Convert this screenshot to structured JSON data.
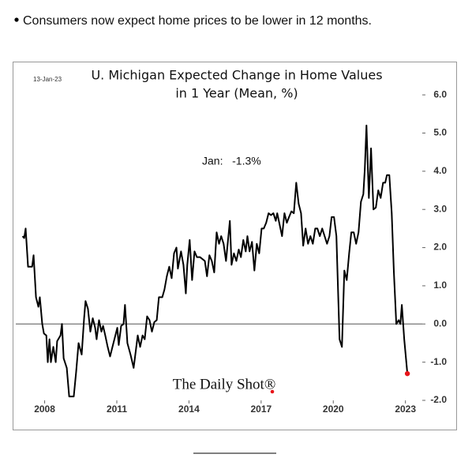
{
  "bullet": "Consumers now expect home prices to be lower in 12 months.",
  "chart_data": {
    "type": "line",
    "title": "U. Michigan Expected Change in Home Values",
    "subtitle": "in 1 Year (Mean, %)",
    "date": "13-Jan-23",
    "annotation": "Jan:   -1.3%",
    "source": "The Daily Shot®",
    "x": [
      2007.08,
      2007.15,
      2007.21,
      2007.31,
      2007.48,
      2007.54,
      2007.64,
      2007.74,
      2007.8,
      2007.9,
      2007.97,
      2008.07,
      2008.13,
      2008.2,
      2008.26,
      2008.36,
      2008.46,
      2008.52,
      2008.66,
      2008.72,
      2008.79,
      2008.92,
      2009.02,
      2009.21,
      2009.31,
      2009.41,
      2009.54,
      2009.64,
      2009.7,
      2009.8,
      2009.9,
      2010.0,
      2010.1,
      2010.16,
      2010.26,
      2010.36,
      2010.43,
      2010.52,
      2010.62,
      2010.72,
      2010.82,
      2010.92,
      2011.02,
      2011.08,
      2011.18,
      2011.28,
      2011.34,
      2011.44,
      2011.57,
      2011.7,
      2011.77,
      2011.87,
      2011.97,
      2012.07,
      2012.16,
      2012.26,
      2012.36,
      2012.46,
      2012.56,
      2012.66,
      2012.75,
      2012.89,
      2012.98,
      2013.08,
      2013.18,
      2013.28,
      2013.38,
      2013.48,
      2013.54,
      2013.67,
      2013.77,
      2013.87,
      2013.93,
      2014.03,
      2014.13,
      2014.23,
      2014.33,
      2014.46,
      2014.56,
      2014.66,
      2014.75,
      2014.85,
      2014.95,
      2015.05,
      2015.15,
      2015.25,
      2015.34,
      2015.44,
      2015.54,
      2015.64,
      2015.7,
      2015.77,
      2015.87,
      2015.97,
      2016.07,
      2016.16,
      2016.26,
      2016.36,
      2016.43,
      2016.52,
      2016.62,
      2016.72,
      2016.82,
      2016.92,
      2017.02,
      2017.11,
      2017.21,
      2017.31,
      2017.41,
      2017.51,
      2017.61,
      2017.67,
      2017.77,
      2017.87,
      2017.97,
      2018.07,
      2018.16,
      2018.26,
      2018.36,
      2018.46,
      2018.56,
      2018.66,
      2018.75,
      2018.85,
      2018.95,
      2019.05,
      2019.15,
      2019.25,
      2019.34,
      2019.44,
      2019.54,
      2019.64,
      2019.74,
      2019.84,
      2019.93,
      2020.03,
      2020.13,
      2020.26,
      2020.36,
      2020.46,
      2020.56,
      2020.66,
      2020.75,
      2020.85,
      2020.95,
      2021.05,
      2021.15,
      2021.25,
      2021.31,
      2021.38,
      2021.48,
      2021.57,
      2021.67,
      2021.77,
      2021.87,
      2021.97,
      2022.07,
      2022.16,
      2022.23,
      2022.33,
      2022.43,
      2022.52,
      2022.62,
      2022.72,
      2022.79,
      2022.85,
      2022.95,
      2023.08
    ],
    "series": [
      {
        "color": "#000000",
        "values": [
          2.3,
          2.25,
          2.5,
          1.5,
          1.5,
          1.8,
          0.7,
          0.45,
          0.7,
          0,
          -0.25,
          -0.3,
          -1.0,
          -0.4,
          -1.0,
          -0.6,
          -1.0,
          -0.45,
          -0.3,
          0,
          -0.9,
          -1.15,
          -1.9,
          -1.9,
          -1.25,
          -0.5,
          -0.8,
          0.15,
          0.6,
          0.4,
          -0.2,
          0.15,
          -0.1,
          -0.4,
          0.1,
          -0.2,
          -0.05,
          -0.3,
          -0.6,
          -0.85,
          -0.6,
          -0.35,
          -0.1,
          -0.55,
          -0.05,
          0,
          0.5,
          -0.5,
          -0.8,
          -1.15,
          -0.8,
          -0.3,
          -0.6,
          -0.3,
          -0.4,
          0.2,
          0.1,
          -0.2,
          0.05,
          0.1,
          0.7,
          0.7,
          0.9,
          1.25,
          1.5,
          1.2,
          1.85,
          2.0,
          1.45,
          1.9,
          1.55,
          0.8,
          1.55,
          2.2,
          1.15,
          1.9,
          1.75,
          1.75,
          1.7,
          1.65,
          1.25,
          1.8,
          1.65,
          1.35,
          2.4,
          2.1,
          2.3,
          2.1,
          1.65,
          2.3,
          2.7,
          1.55,
          1.85,
          1.65,
          1.95,
          1.75,
          2.2,
          1.9,
          2.3,
          1.9,
          2.15,
          1.4,
          2.1,
          1.85,
          2.5,
          2.5,
          2.65,
          2.9,
          2.85,
          2.9,
          2.7,
          2.9,
          2.6,
          2.3,
          2.9,
          2.65,
          2.8,
          2.95,
          2.9,
          3.7,
          3.15,
          2.9,
          2.05,
          2.5,
          2.1,
          2.3,
          2.1,
          2.5,
          2.5,
          2.3,
          2.5,
          2.3,
          2.1,
          2.3,
          2.8,
          2.8,
          2.3,
          -0.4,
          -0.6,
          1.4,
          1.15,
          1.85,
          2.4,
          2.4,
          2.1,
          2.4,
          3.2,
          3.4,
          4.05,
          5.2,
          3.3,
          4.6,
          3.0,
          3.05,
          3.5,
          3.3,
          3.7,
          3.7,
          3.9,
          3.9,
          2.9,
          1.35,
          0,
          0.1,
          0,
          0.5,
          -0.4,
          -1.3
        ]
      }
    ],
    "last_point_color": "#e8141a",
    "xlim": [
      2006.8,
      2023.7
    ],
    "xticks": [
      2008,
      2011,
      2014,
      2017,
      2020,
      2023
    ],
    "ylim": [
      -2,
      6.83
    ],
    "yticks": [
      {
        "value": -2,
        "label": "-2.0"
      },
      {
        "value": -1,
        "label": "-1.0"
      },
      {
        "value": 0,
        "label": "0.0"
      },
      {
        "value": 1,
        "label": "1.0"
      },
      {
        "value": 2,
        "label": "2.0"
      },
      {
        "value": 3,
        "label": "3.0"
      },
      {
        "value": 4,
        "label": "4.0"
      },
      {
        "value": 5,
        "label": "5.0"
      },
      {
        "value": 6,
        "label": "6.0"
      }
    ]
  }
}
